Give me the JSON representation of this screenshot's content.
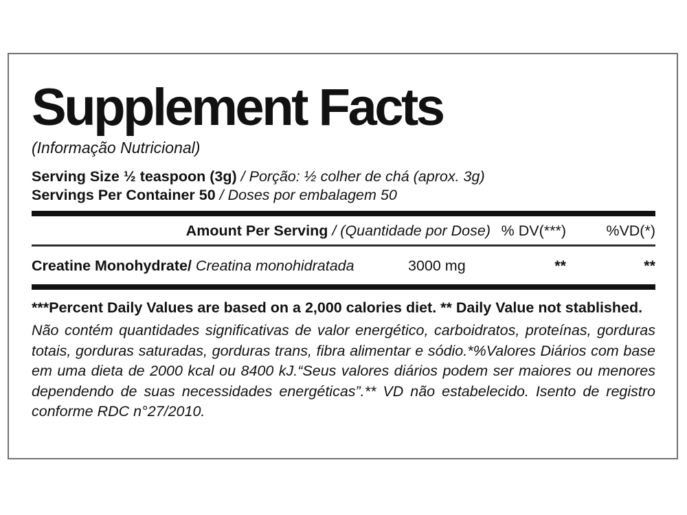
{
  "panel": {
    "title": "Supplement Facts",
    "subtitle": "(Informação Nutricional)",
    "serving_size": {
      "en": "Serving Size ½ teaspoon (3g)",
      "sep": " / ",
      "pt": "Porção: ½ colher de chá (aprox. 3g)"
    },
    "servings_per_container": {
      "en": "Servings Per Container 50",
      "sep": " / ",
      "pt": "Doses por embalagem 50"
    },
    "table": {
      "header": {
        "amount_en": "Amount Per Serving",
        "sep": " / ",
        "amount_pt": "(Quantidade por Dose)",
        "dv_col": "% DV(***)",
        "vd_col": "%VD(*)"
      },
      "rows": [
        {
          "name_en": "Creatine Monohydrate/",
          "name_pt": " Creatina monohidratada",
          "amount": "3000 mg",
          "dv": "**",
          "vd": "**"
        }
      ]
    },
    "footnote_en": "***Percent Daily Values are based on a 2,000 calories diet. ** Daily Value not stablished.",
    "footnote_pt": "Não contém quantidades significativas de valor energético, carboidratos, proteínas, gorduras totais, gorduras saturadas, gorduras trans, fibra alimentar e sódio.*%Valores Diários com base em uma dieta de 2000 kcal ou 8400 kJ.“Seus valores diários podem ser maiores ou menores dependendo de suas necessidades energéticas”.** VD não estabelecido. Isento de registro conforme RDC n°27/2010."
  },
  "colors": {
    "text": "#111111",
    "bar": "#111111",
    "frame_border": "#707070",
    "background": "#ffffff"
  }
}
